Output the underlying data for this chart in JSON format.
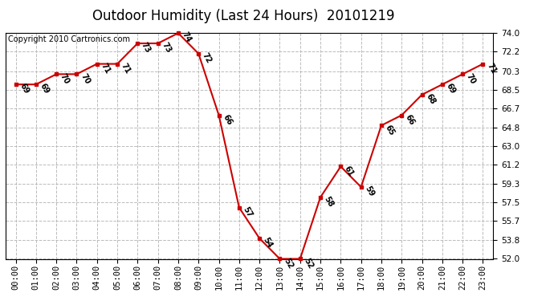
{
  "title": "Outdoor Humidity (Last 24 Hours)  20101219",
  "copyright": "Copyright 2010 Cartronics.com",
  "x_labels": [
    "00:00",
    "01:00",
    "02:00",
    "03:00",
    "04:00",
    "05:00",
    "06:00",
    "07:00",
    "08:00",
    "09:00",
    "10:00",
    "11:00",
    "12:00",
    "13:00",
    "14:00",
    "15:00",
    "16:00",
    "17:00",
    "18:00",
    "19:00",
    "20:00",
    "21:00",
    "22:00",
    "23:00"
  ],
  "hours": [
    0,
    1,
    2,
    3,
    4,
    5,
    6,
    7,
    8,
    9,
    10,
    11,
    12,
    13,
    14,
    15,
    16,
    17,
    18,
    19,
    20,
    21,
    22,
    23
  ],
  "humidity": [
    69,
    69,
    70,
    70,
    71,
    71,
    73,
    73,
    74,
    72,
    66,
    57,
    54,
    52,
    52,
    58,
    61,
    59,
    65,
    66,
    68,
    69,
    70,
    71
  ],
  "ylim": [
    52.0,
    74.0
  ],
  "yticks": [
    52.0,
    53.8,
    55.7,
    57.5,
    59.3,
    61.2,
    63.0,
    64.8,
    66.7,
    68.5,
    70.3,
    72.2,
    74.0
  ],
  "line_color": "#cc0000",
  "marker_color": "#cc0000",
  "bg_color": "#ffffff",
  "grid_color": "#bbbbbb",
  "title_fontsize": 12,
  "label_fontsize": 7,
  "copyright_fontsize": 7,
  "tick_fontsize": 7.5
}
